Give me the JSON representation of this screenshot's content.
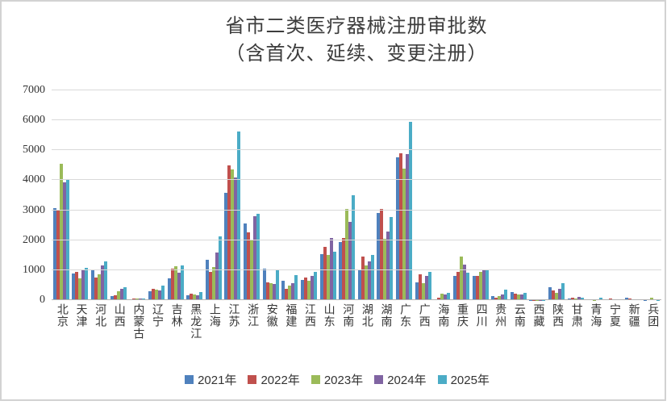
{
  "title": {
    "line1": "省市二类医疗器械注册审批数",
    "line2": "（含首次、延续、变更注册）"
  },
  "chart_data": {
    "type": "bar",
    "title": "省市二类医疗器械注册审批数（含首次、延续、变更注册）",
    "categories": [
      "北京",
      "天津",
      "河北",
      "山西",
      "内蒙古",
      "辽宁",
      "吉林",
      "黑龙江",
      "上海",
      "江苏",
      "浙江",
      "安徽",
      "福建",
      "江西",
      "山东",
      "河南",
      "湖北",
      "湖南",
      "广东",
      "广西",
      "海南",
      "重庆",
      "四川",
      "贵州",
      "云南",
      "西藏",
      "陕西",
      "甘肃",
      "青海",
      "宁夏",
      "新疆",
      "兵团"
    ],
    "series": [
      {
        "name": "2021年",
        "color": "#4F81BD",
        "values": [
          3060,
          890,
          1010,
          130,
          35,
          300,
          730,
          170,
          1340,
          3570,
          2550,
          1040,
          640,
          685,
          1530,
          1940,
          1020,
          2900,
          4760,
          600,
          40,
          820,
          820,
          145,
          280,
          5,
          430,
          60,
          15,
          40,
          70,
          10
        ]
      },
      {
        "name": "2022年",
        "color": "#C0504D",
        "values": [
          3000,
          950,
          760,
          160,
          60,
          365,
          1040,
          205,
          955,
          4510,
          2250,
          600,
          370,
          750,
          1770,
          2070,
          1460,
          3045,
          4910,
          870,
          90,
          930,
          820,
          75,
          225,
          5,
          335,
          70,
          20,
          50,
          55,
          15
        ]
      },
      {
        "name": "2023年",
        "color": "#9BBB59",
        "values": [
          4540,
          740,
          875,
          290,
          50,
          345,
          1130,
          190,
          1110,
          4350,
          2030,
          570,
          480,
          640,
          1500,
          3050,
          1170,
          2045,
          4400,
          560,
          205,
          1450,
          930,
          135,
          200,
          5,
          250,
          55,
          10,
          30,
          30,
          85
        ]
      },
      {
        "name": "2024年",
        "color": "#8064A2",
        "values": [
          3930,
          1030,
          1170,
          380,
          60,
          330,
          920,
          155,
          1595,
          4100,
          2810,
          550,
          570,
          810,
          2080,
          2600,
          1300,
          2300,
          4870,
          800,
          190,
          1180,
          990,
          190,
          185,
          5,
          370,
          100,
          15,
          15,
          25,
          30
        ]
      },
      {
        "name": "2025年",
        "color": "#4BACC6",
        "values": [
          4010,
          1070,
          1290,
          440,
          55,
          480,
          1160,
          280,
          2115,
          5630,
          2880,
          1020,
          840,
          930,
          1620,
          3510,
          1495,
          2775,
          5960,
          940,
          250,
          920,
          1020,
          340,
          250,
          10,
          570,
          90,
          90,
          20,
          35,
          10
        ]
      }
    ],
    "ylabel": "",
    "xlabel": "",
    "ylim": [
      0,
      7000
    ],
    "ytick_step": 1000,
    "grid": "horizontal-only",
    "legend_position": "bottom",
    "gridline_color": "#D9D9D9",
    "axis_text_color": "#333333",
    "title_color": "#3D3D3D"
  }
}
